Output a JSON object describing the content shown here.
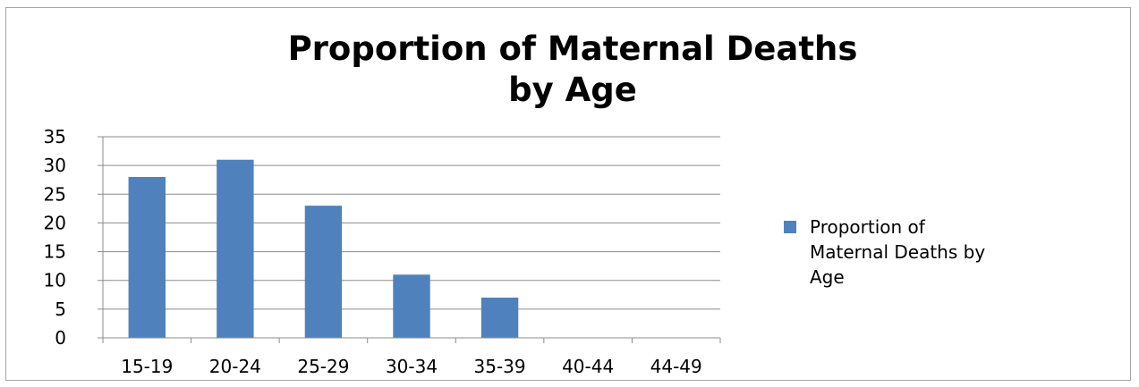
{
  "chart_data": {
    "type": "bar",
    "title": "Proportion of Maternal Deaths by Age",
    "title_lines": [
      "Proportion of Maternal Deaths",
      "by Age"
    ],
    "categories": [
      "15-19",
      "20-24",
      "25-29",
      "30-34",
      "35-39",
      "40-44",
      "44-49"
    ],
    "series": [
      {
        "name": "Proportion of Maternal Deaths by Age",
        "legend_lines": [
          "Proportion of",
          "Maternal Deaths by",
          "Age"
        ],
        "values": [
          28,
          31,
          23,
          11,
          7,
          0,
          0
        ],
        "color": "#4f81bd"
      }
    ],
    "ylim": [
      0,
      35
    ],
    "yticks": [
      0,
      5,
      10,
      15,
      20,
      25,
      30,
      35
    ],
    "xlabel": "",
    "ylabel": "",
    "grid": true,
    "legend_position": "right"
  }
}
